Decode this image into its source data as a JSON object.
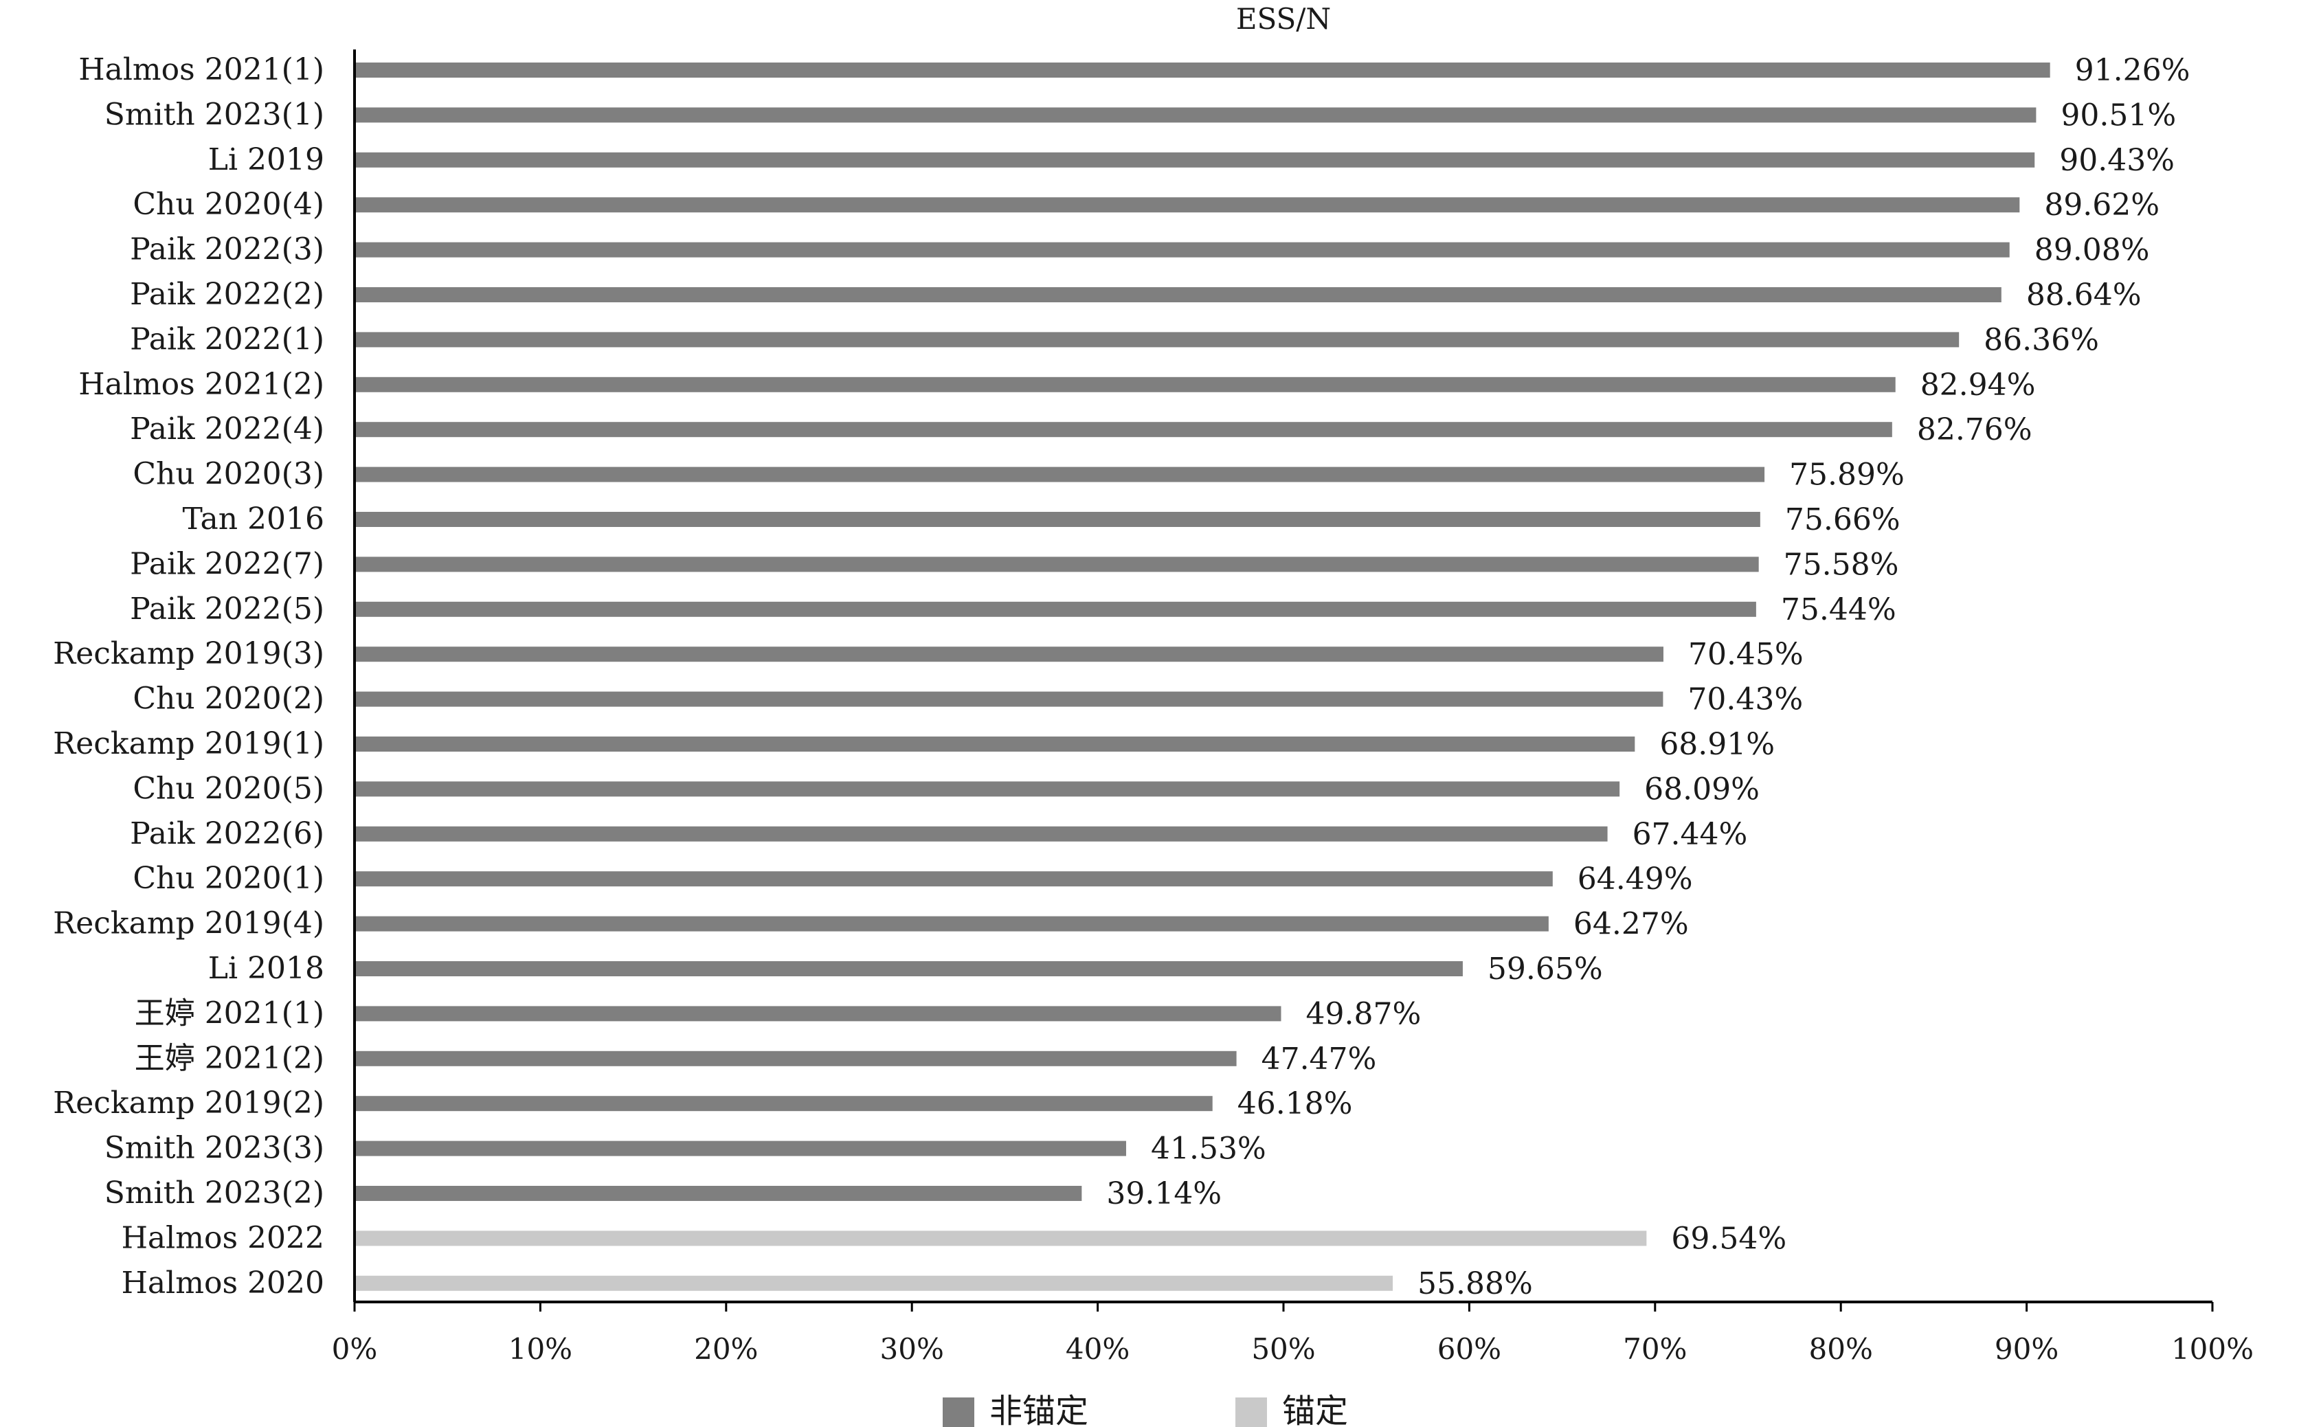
{
  "chart_data": {
    "type": "bar",
    "orientation": "horizontal",
    "title": "ESS/N",
    "xlabel": "",
    "ylabel": "",
    "xlim": [
      0,
      100
    ],
    "x_ticks": [
      "0%",
      "10%",
      "20%",
      "30%",
      "40%",
      "50%",
      "60%",
      "70%",
      "80%",
      "90%",
      "100%"
    ],
    "grid": false,
    "legend": {
      "placement": "bottom-center",
      "entries": [
        {
          "label": "非锚定",
          "color": "#7f7f7f"
        },
        {
          "label": "锚定",
          "color": "#c9c9c9"
        }
      ]
    },
    "bars": [
      {
        "category": "Halmos 2021(1)",
        "value": 91.26,
        "label": "91.26%",
        "group": "非锚定"
      },
      {
        "category": "Smith 2023(1)",
        "value": 90.51,
        "label": "90.51%",
        "group": "非锚定"
      },
      {
        "category": "Li 2019",
        "value": 90.43,
        "label": "90.43%",
        "group": "非锚定"
      },
      {
        "category": "Chu 2020(4)",
        "value": 89.62,
        "label": "89.62%",
        "group": "非锚定"
      },
      {
        "category": "Paik 2022(3)",
        "value": 89.08,
        "label": "89.08%",
        "group": "非锚定"
      },
      {
        "category": "Paik 2022(2)",
        "value": 88.64,
        "label": "88.64%",
        "group": "非锚定"
      },
      {
        "category": "Paik 2022(1)",
        "value": 86.36,
        "label": "86.36%",
        "group": "非锚定"
      },
      {
        "category": "Halmos 2021(2)",
        "value": 82.94,
        "label": "82.94%",
        "group": "非锚定"
      },
      {
        "category": "Paik 2022(4)",
        "value": 82.76,
        "label": "82.76%",
        "group": "非锚定"
      },
      {
        "category": "Chu 2020(3)",
        "value": 75.89,
        "label": "75.89%",
        "group": "非锚定"
      },
      {
        "category": "Tan 2016",
        "value": 75.66,
        "label": "75.66%",
        "group": "非锚定"
      },
      {
        "category": "Paik 2022(7)",
        "value": 75.58,
        "label": "75.58%",
        "group": "非锚定"
      },
      {
        "category": "Paik 2022(5)",
        "value": 75.44,
        "label": "75.44%",
        "group": "非锚定"
      },
      {
        "category": "Reckamp 2019(3)",
        "value": 70.45,
        "label": "70.45%",
        "group": "非锚定"
      },
      {
        "category": "Chu 2020(2)",
        "value": 70.43,
        "label": "70.43%",
        "group": "非锚定"
      },
      {
        "category": "Reckamp 2019(1)",
        "value": 68.91,
        "label": "68.91%",
        "group": "非锚定"
      },
      {
        "category": "Chu 2020(5)",
        "value": 68.09,
        "label": "68.09%",
        "group": "非锚定"
      },
      {
        "category": "Paik 2022(6)",
        "value": 67.44,
        "label": "67.44%",
        "group": "非锚定"
      },
      {
        "category": "Chu 2020(1)",
        "value": 64.49,
        "label": "64.49%",
        "group": "非锚定"
      },
      {
        "category": "Reckamp 2019(4)",
        "value": 64.27,
        "label": "64.27%",
        "group": "非锚定"
      },
      {
        "category": "Li 2018",
        "value": 59.65,
        "label": "59.65%",
        "group": "非锚定"
      },
      {
        "category": "王婷 2021(1)",
        "value": 49.87,
        "label": "49.87%",
        "group": "非锚定"
      },
      {
        "category": "王婷 2021(2)",
        "value": 47.47,
        "label": "47.47%",
        "group": "非锚定"
      },
      {
        "category": "Reckamp 2019(2)",
        "value": 46.18,
        "label": "46.18%",
        "group": "非锚定"
      },
      {
        "category": "Smith 2023(3)",
        "value": 41.53,
        "label": "41.53%",
        "group": "非锚定"
      },
      {
        "category": "Smith 2023(2)",
        "value": 39.14,
        "label": "39.14%",
        "group": "非锚定"
      },
      {
        "category": "Halmos 2022",
        "value": 69.54,
        "label": "69.54%",
        "group": "锚定"
      },
      {
        "category": "Halmos 2020",
        "value": 55.88,
        "label": "55.88%",
        "group": "锚定"
      }
    ]
  }
}
